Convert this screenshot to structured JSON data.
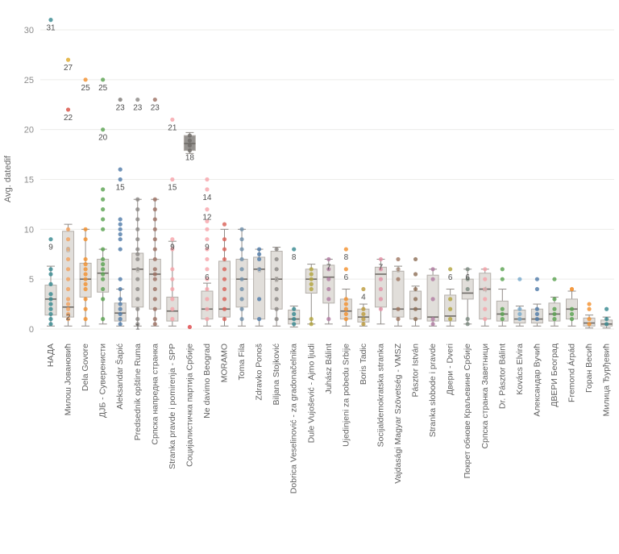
{
  "chart_data": {
    "type": "boxplot",
    "title": "",
    "ylabel": "Avg. datedif",
    "xlabel": "",
    "ylim": [
      0,
      32
    ],
    "y_ticks": [
      0,
      5,
      10,
      15,
      20,
      25,
      30
    ],
    "grid": true,
    "legend": "none",
    "x_tick_rotation": -90,
    "colors": {
      "box_fill_default": "#dedad6",
      "box_stroke": "#b5b0ab",
      "median": "#6e6a66",
      "whisker": "#918c88",
      "gridline": "#ececea",
      "annotation": "#4e4e4e",
      "annotation_muted": "#b9b4ae"
    },
    "categories": [
      {
        "label": "НАДА",
        "dot_color": "#35878f",
        "box": {
          "lo": 0.3,
          "q1": 1.4,
          "med": 3,
          "q3": 4.4,
          "hi": 6.3
        },
        "dots": [
          31,
          9,
          6,
          5.5,
          4.5,
          3.5,
          3,
          2.5,
          2,
          1.5,
          1,
          0.5
        ],
        "annotations": [
          {
            "value": 31,
            "label": "31"
          },
          {
            "value": 9,
            "label": "9"
          }
        ]
      },
      {
        "label": "Милош Јовановић",
        "dot_color": "#f2a05c",
        "box": {
          "lo": 0.3,
          "q1": 1.2,
          "med": 2.2,
          "q3": 9.8,
          "hi": 10.5
        },
        "dots": [
          10,
          9,
          8,
          7,
          6,
          5,
          4,
          3,
          2.5,
          2,
          1.5,
          1
        ],
        "extra_dots": [
          {
            "y": 27,
            "color": "#e2b13e"
          },
          {
            "y": 22,
            "color": "#dd6055"
          }
        ],
        "annotations": [
          {
            "value": 27,
            "label": "27"
          },
          {
            "value": 22,
            "label": "22"
          },
          {
            "value": 8,
            "label": "8",
            "muted": true
          },
          {
            "value": 2,
            "label": "2"
          }
        ]
      },
      {
        "label": "Dela Govore",
        "dot_color": "#f28e2b",
        "box": {
          "lo": 0.3,
          "q1": 3.2,
          "med": 5,
          "q3": 6.6,
          "hi": 10
        },
        "dots": [
          25,
          10,
          9,
          7,
          6.5,
          6,
          5.5,
          5,
          4.5,
          4,
          3,
          2,
          1
        ],
        "annotations": [
          {
            "value": 25,
            "label": "25"
          }
        ]
      },
      {
        "label": "ДЈБ - Суверенисти",
        "dot_color": "#59a14f",
        "box": {
          "lo": 0.5,
          "q1": 3.7,
          "med": 5.6,
          "q3": 7,
          "hi": 8
        },
        "dots": [
          25,
          20,
          14,
          13,
          12,
          11,
          10,
          8,
          7,
          6.5,
          6,
          5.5,
          5,
          4,
          3,
          1
        ],
        "annotations": [
          {
            "value": 25,
            "label": "25"
          },
          {
            "value": 20,
            "label": "20"
          }
        ]
      },
      {
        "label": "Aleksandar Šapić",
        "dot_color": "#4e79a7",
        "box": {
          "lo": 0.3,
          "q1": 0.8,
          "med": 1.6,
          "q3": 2.6,
          "hi": 4
        },
        "dots": [
          16,
          15,
          11,
          10.5,
          10,
          9.5,
          9,
          8,
          5,
          4,
          3,
          2.5,
          2,
          1.5,
          1,
          0.5
        ],
        "extra_dots": [
          {
            "y": 23,
            "color": "#8a8683"
          }
        ],
        "annotations": [
          {
            "value": 23,
            "label": "23"
          },
          {
            "value": 15,
            "label": "15"
          }
        ]
      },
      {
        "label": "Predsednik opštine Ruma",
        "dot_color": "#8a8683",
        "box": {
          "lo": 0.3,
          "q1": 2.2,
          "med": 6,
          "q3": 7.6,
          "hi": 13
        },
        "dots": [
          23,
          13,
          12,
          11,
          10,
          9,
          8,
          7.5,
          7,
          6,
          5,
          4,
          3,
          2,
          1,
          0.5
        ],
        "annotations": [
          {
            "value": 23,
            "label": "23"
          },
          {
            "value": 6,
            "label": "6",
            "muted": true
          },
          {
            "value": 1,
            "label": "1"
          }
        ]
      },
      {
        "label": "Српска напредна странка",
        "dot_color": "#9c6f62",
        "box": {
          "lo": 0.3,
          "q1": 2,
          "med": 5.5,
          "q3": 7,
          "hi": 13
        },
        "dots": [
          23,
          13,
          12,
          11,
          10,
          9,
          8,
          7,
          6,
          5.5,
          5,
          4,
          3,
          2,
          1,
          0.5
        ],
        "annotations": [
          {
            "value": 23,
            "label": "23"
          }
        ]
      },
      {
        "label": "Stranka pravde i pomirenja - SPP",
        "dot_color": "#f6a2a9",
        "box": {
          "lo": 0.3,
          "q1": 0.8,
          "med": 1.8,
          "q3": 3.2,
          "hi": 8.8
        },
        "dots": [
          21,
          15,
          9,
          8,
          6,
          5,
          4,
          3,
          2,
          1
        ],
        "annotations": [
          {
            "value": 21,
            "label": "21"
          },
          {
            "value": 15,
            "label": "15"
          },
          {
            "value": 9,
            "label": "9"
          }
        ]
      },
      {
        "label": "Социјалистичка партија Србије",
        "dot_color": "#6e6a66",
        "box_fill": "#8a8683",
        "box": {
          "lo": 17.6,
          "q1": 17.9,
          "med": 18.6,
          "q3": 19.4,
          "hi": 19.7
        },
        "dots": [
          19.4,
          18.9,
          18.4,
          17.9
        ],
        "extra_dots": [
          {
            "y": 0.2,
            "color": "#e15759"
          }
        ],
        "annotations": [
          {
            "value": 18,
            "label": "18"
          }
        ]
      },
      {
        "label": "Ne davimo Beograd",
        "dot_color": "#f6a2a9",
        "box": {
          "lo": 0.3,
          "q1": 1,
          "med": 2,
          "q3": 3.8,
          "hi": 4.6
        },
        "dots": [
          15,
          14,
          12,
          10.8,
          10,
          9,
          8,
          7,
          6,
          5,
          4,
          3,
          2,
          1
        ],
        "annotations": [
          {
            "value": 14,
            "label": "14"
          },
          {
            "value": 12,
            "label": "12"
          },
          {
            "value": 9,
            "label": "9"
          },
          {
            "value": 6,
            "label": "6"
          }
        ]
      },
      {
        "label": "MORAMO",
        "dot_color": "#d95f55",
        "box": {
          "lo": 0.3,
          "q1": 1.2,
          "med": 2,
          "q3": 6.8,
          "hi": 10
        },
        "dots": [
          10.5,
          9,
          8,
          7,
          6,
          5,
          4,
          3,
          2,
          1
        ]
      },
      {
        "label": "Toma Fila",
        "dot_color": "#6f8ea9",
        "box": {
          "lo": 0.3,
          "q1": 2.2,
          "med": 5,
          "q3": 7,
          "hi": 10
        },
        "dots": [
          10,
          9,
          8,
          7,
          6,
          5,
          4,
          3,
          2,
          1
        ]
      },
      {
        "label": "Zdravko Ponoš",
        "dot_color": "#4e79a7",
        "box": {
          "lo": 0.3,
          "q1": 1,
          "med": 6,
          "q3": 7.2,
          "hi": 8
        },
        "dots": [
          8,
          7.5,
          7,
          6,
          3,
          1
        ],
        "annotations": [
          {
            "value": 6,
            "label": "6",
            "muted": true
          }
        ]
      },
      {
        "label": "Biljana Stojković",
        "dot_color": "#8a8683",
        "box": {
          "lo": 0.3,
          "q1": 2,
          "med": 5,
          "q3": 7.8,
          "hi": 8.2
        },
        "dots": [
          8,
          7,
          6,
          5,
          4,
          3,
          2,
          1
        ],
        "annotations": [
          {
            "value": 5,
            "label": "5",
            "muted": true
          }
        ]
      },
      {
        "label": "Dobrica Veselinović - za gradonačelnika",
        "dot_color": "#35878f",
        "box": {
          "lo": 0.2,
          "q1": 0.5,
          "med": 1,
          "q3": 1.9,
          "hi": 2.3
        },
        "dots": [
          8,
          2,
          1.5,
          1,
          0.5
        ],
        "annotations": [
          {
            "value": 8,
            "label": "8"
          }
        ]
      },
      {
        "label": "Dule Vujošević - Ajmo ljudi",
        "dot_color": "#b1a23b",
        "box": {
          "lo": 0.5,
          "q1": 3.6,
          "med": 5,
          "q3": 6,
          "hi": 6.5
        },
        "dots": [
          6,
          5.5,
          5,
          4.5,
          4,
          1,
          0.5
        ]
      },
      {
        "label": "Juhász Bálint",
        "dot_color": "#b07aa1",
        "box": {
          "lo": 0.5,
          "q1": 2.6,
          "med": 5.2,
          "q3": 6.4,
          "hi": 7
        },
        "dots": [
          7,
          6,
          5,
          4,
          3,
          1
        ],
        "annotations": [
          {
            "value": 7,
            "label": "7"
          }
        ]
      },
      {
        "label": "Ujedinjeni za pobedu Srbije",
        "dot_color": "#f28e2b",
        "box": {
          "lo": 0.3,
          "q1": 1,
          "med": 1.8,
          "q3": 3,
          "hi": 4
        },
        "dots": [
          8,
          6,
          3,
          2.5,
          2,
          1.5,
          1
        ],
        "annotations": [
          {
            "value": 8,
            "label": "8"
          },
          {
            "value": 6,
            "label": "6"
          }
        ]
      },
      {
        "label": "Boris Tadic",
        "dot_color": "#bc9a39",
        "box": {
          "lo": 0.3,
          "q1": 0.7,
          "med": 1.2,
          "q3": 2,
          "hi": 2.5
        },
        "dots": [
          4,
          2,
          1.5,
          1,
          0.5
        ],
        "annotations": [
          {
            "value": 4,
            "label": "4"
          }
        ]
      },
      {
        "label": "Socijaldemokratska stranka",
        "dot_color": "#e38fa5",
        "box": {
          "lo": 0.5,
          "q1": 2.2,
          "med": 5.5,
          "q3": 6.2,
          "hi": 7
        },
        "dots": [
          7,
          6,
          5,
          4,
          3,
          2
        ],
        "annotations": [
          {
            "value": 7,
            "label": "7"
          }
        ]
      },
      {
        "label": "Vajdasági Magyar Szövetség - VMSZ",
        "dot_color": "#9d7660",
        "box": {
          "lo": 0.3,
          "q1": 1.2,
          "med": 2,
          "q3": 5.8,
          "hi": 6.3
        },
        "dots": [
          7,
          6,
          5,
          2,
          1
        ],
        "annotations": [
          {
            "value": 6,
            "label": "6",
            "muted": true
          }
        ]
      },
      {
        "label": "Pásztor István",
        "dot_color": "#8c6d54",
        "box": {
          "lo": 0.3,
          "q1": 1,
          "med": 2,
          "q3": 3.8,
          "hi": 4.3
        },
        "dots": [
          7,
          5.5,
          4,
          3,
          2,
          1
        ]
      },
      {
        "label": "Stranka slobode i pravde",
        "dot_color": "#b07aa1",
        "box": {
          "lo": 0.3,
          "q1": 0.8,
          "med": 1.2,
          "q3": 5.4,
          "hi": 6
        },
        "dots": [
          6,
          5,
          3,
          1,
          0.5
        ]
      },
      {
        "label": "Двери - Dveri",
        "dot_color": "#b1a23b",
        "box": {
          "lo": 0.3,
          "q1": 0.8,
          "med": 1.3,
          "q3": 3.4,
          "hi": 4
        },
        "dots": [
          6,
          3,
          2,
          1
        ],
        "annotations": [
          {
            "value": 6,
            "label": "6"
          }
        ]
      },
      {
        "label": "Покрет обнове Краљевине Србије",
        "dot_color": "#7b8a80",
        "box": {
          "lo": 0.5,
          "q1": 3,
          "med": 3.6,
          "q3": 5,
          "hi": 6
        },
        "dots": [
          6,
          5,
          4,
          1,
          0.5
        ],
        "annotations": [
          {
            "value": 6,
            "label": "6"
          }
        ]
      },
      {
        "label": "Српска странка Заветници",
        "dot_color": "#f6a2a9",
        "box": {
          "lo": 0.3,
          "q1": 1,
          "med": 4,
          "q3": 5.6,
          "hi": 6
        },
        "dots": [
          6,
          5,
          4,
          3,
          2,
          1
        ],
        "annotations": [
          {
            "value": 4,
            "label": "4",
            "muted": true
          }
        ]
      },
      {
        "label": "Dr. Pásztor Bálint",
        "dot_color": "#59a14f",
        "box": {
          "lo": 0.3,
          "q1": 0.8,
          "med": 1.5,
          "q3": 2.8,
          "hi": 4
        },
        "dots": [
          6,
          5,
          2,
          1.5,
          1
        ]
      },
      {
        "label": "Kovács Elvira",
        "dot_color": "#76a7cb",
        "box": {
          "lo": 0.3,
          "q1": 0.6,
          "med": 1,
          "q3": 1.9,
          "hi": 2.3
        },
        "dots": [
          5,
          2,
          1.5,
          1
        ]
      },
      {
        "label": "Александар Вучић",
        "dot_color": "#4e79a7",
        "box": {
          "lo": 0.3,
          "q1": 0.6,
          "med": 1,
          "q3": 2,
          "hi": 2.5
        },
        "dots": [
          5,
          4,
          2,
          1.5,
          1
        ]
      },
      {
        "label": "ДВЕРИ Београд",
        "dot_color": "#59a14f",
        "box": {
          "lo": 0.3,
          "q1": 0.8,
          "med": 1.5,
          "q3": 2.6,
          "hi": 3.2
        },
        "dots": [
          5,
          3,
          2,
          1.5,
          1
        ]
      },
      {
        "label": "Fremond Árpád",
        "dot_color": "#59a14f",
        "box": {
          "lo": 0.3,
          "q1": 1,
          "med": 2,
          "q3": 3,
          "hi": 3.8
        },
        "dots": [
          2,
          1.5,
          1
        ],
        "extra_dots": [
          {
            "y": 4,
            "color": "#f28e2b"
          }
        ]
      },
      {
        "label": "Горан Весић",
        "dot_color": "#f28e2b",
        "box": {
          "lo": 0.1,
          "q1": 0.3,
          "med": 0.6,
          "q3": 1.1,
          "hi": 1.4
        },
        "dots": [
          2.5,
          2,
          1,
          0.5
        ]
      },
      {
        "label": "Милица Ђурђевић",
        "dot_color": "#35878f",
        "box": {
          "lo": 0.1,
          "q1": 0.3,
          "med": 0.5,
          "q3": 0.9,
          "hi": 1.2
        },
        "dots": [
          2,
          1,
          0.5
        ]
      }
    ]
  }
}
